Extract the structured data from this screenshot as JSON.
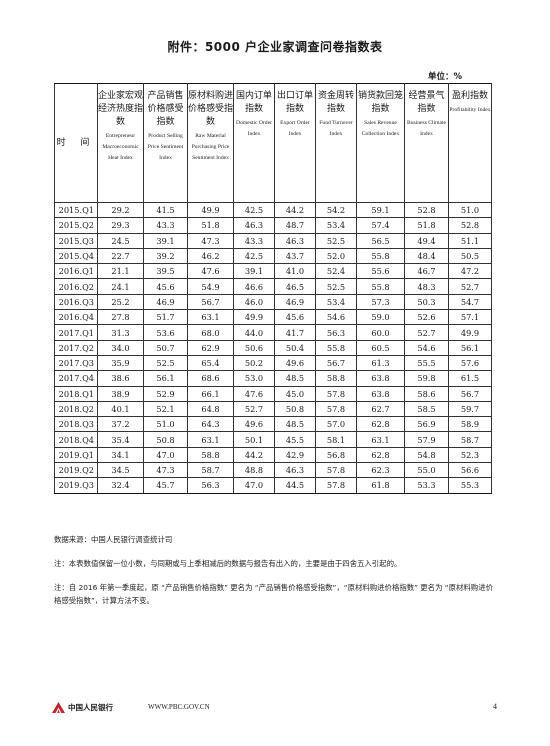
{
  "title": "附件：5000 户企业家调查问卷指数表",
  "unit_label": "单位：%",
  "columns": [
    {
      "cn": "时 间",
      "en": ""
    },
    {
      "cn": "企业家宏观经济热度指数",
      "en": "Entrepreneur Macroeconomic Heat Index"
    },
    {
      "cn": "产品销售价格感受指数",
      "en": "Product Selling Price Sentiment Index"
    },
    {
      "cn": "原材料购进价格感受指数",
      "en": "Raw Material Purchasing Price Sentiment Index"
    },
    {
      "cn": "国内订单指数",
      "en": "Domestic Order Index"
    },
    {
      "cn": "出口订单指数",
      "en": "Export Order Index"
    },
    {
      "cn": "资金周转指数",
      "en": "Fund Turnover Index"
    },
    {
      "cn": "销货款回笼指数",
      "en": "Sales Revenue Collection Index"
    },
    {
      "cn": "经营景气指数",
      "en": "Business Climate Index"
    },
    {
      "cn": "盈利指数",
      "en": "Profitability Index"
    }
  ],
  "rows": [
    [
      "2015.Q1",
      "29.2",
      "41.5",
      "49.9",
      "42.5",
      "44.2",
      "54.2",
      "59.1",
      "52.8",
      "51.0"
    ],
    [
      "2015.Q2",
      "29.3",
      "43.3",
      "51.8",
      "46.3",
      "48.7",
      "53.4",
      "57.4",
      "51.8",
      "52.8"
    ],
    [
      "2015.Q3",
      "24.5",
      "39.1",
      "47.3",
      "43.3",
      "46.3",
      "52.5",
      "56.5",
      "49.4",
      "51.1"
    ],
    [
      "2015.Q4",
      "22.7",
      "39.2",
      "46.2",
      "42.5",
      "43.7",
      "52.0",
      "55.8",
      "48.4",
      "50.5"
    ],
    [
      "2016.Q1",
      "21.1",
      "39.5",
      "47.6",
      "39.1",
      "41.0",
      "52.4",
      "55.6",
      "46.7",
      "47.2"
    ],
    [
      "2016.Q2",
      "24.1",
      "45.6",
      "54.9",
      "46.6",
      "46.5",
      "52.5",
      "55.8",
      "48.3",
      "52.7"
    ],
    [
      "2016.Q3",
      "25.2",
      "46.9",
      "56.7",
      "46.0",
      "46.9",
      "53.4",
      "57.3",
      "50.3",
      "54.7"
    ],
    [
      "2016.Q4",
      "27.8",
      "51.7",
      "63.1",
      "49.9",
      "45.6",
      "54.6",
      "59.0",
      "52.6",
      "57.1"
    ],
    [
      "2017.Q1",
      "31.3",
      "53.6",
      "68.0",
      "44.0",
      "41.7",
      "56.3",
      "60.0",
      "52.7",
      "49.9"
    ],
    [
      "2017.Q2",
      "34.0",
      "50.7",
      "62.9",
      "50.6",
      "50.4",
      "55.8",
      "60.5",
      "54.6",
      "56.1"
    ],
    [
      "2017.Q3",
      "35.9",
      "52.5",
      "65.4",
      "50.2",
      "49.6",
      "56.7",
      "61.3",
      "55.5",
      "57.6"
    ],
    [
      "2017.Q4",
      "38.6",
      "56.1",
      "68.6",
      "53.0",
      "48.5",
      "58.8",
      "63.8",
      "59.8",
      "61.5"
    ],
    [
      "2018.Q1",
      "38.9",
      "52.9",
      "66.1",
      "47.6",
      "45.0",
      "57.8",
      "63.8",
      "58.6",
      "56.7"
    ],
    [
      "2018.Q2",
      "40.1",
      "52.1",
      "64.8",
      "52.7",
      "50.8",
      "57.8",
      "62.7",
      "58.5",
      "59.7"
    ],
    [
      "2018.Q3",
      "37.2",
      "51.0",
      "64.3",
      "49.6",
      "48.5",
      "57.0",
      "62.8",
      "56.9",
      "58.9"
    ],
    [
      "2018.Q4",
      "35.4",
      "50.8",
      "63.1",
      "50.1",
      "45.5",
      "58.1",
      "63.1",
      "57.9",
      "58.7"
    ],
    [
      "2019.Q1",
      "34.1",
      "47.0",
      "58.8",
      "44.2",
      "42.9",
      "56.8",
      "62.8",
      "54.8",
      "52.3"
    ],
    [
      "2019.Q2",
      "34.5",
      "47.3",
      "58.7",
      "48.8",
      "46.3",
      "57.8",
      "62.3",
      "55.0",
      "56.6"
    ],
    [
      "2019.Q3",
      "32.4",
      "45.7",
      "56.3",
      "47.0",
      "44.5",
      "57.8",
      "61.8",
      "53.3",
      "55.3"
    ]
  ],
  "notes": {
    "source": "数据来源：中国人民银行调查统计司",
    "rounding": "注：本表数值保留一位小数，与同期或与上季相减后的数据与报告有出入的，主要是由于四舍五入引起的。",
    "rename": "注：自 2016 年第一季度起，原 “产品销售价格指数” 更名为 “产品销售价格感受指数”，“原材料购进价格指数” 更名为 “原材料购进价格感受指数”，计算方法不变。"
  },
  "footer": {
    "bank_name": "中国人民银行",
    "website": "WWW.PBC.GOV.CN",
    "page_number": "4",
    "logo_icon": "pbc-logo-icon",
    "logo_color": "#c0282d"
  }
}
